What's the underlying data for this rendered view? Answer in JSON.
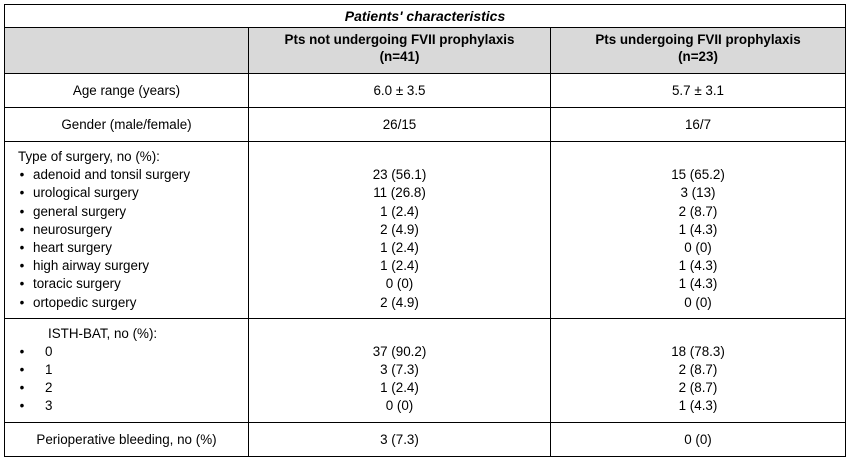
{
  "table": {
    "title": "Patients' characteristics",
    "headers": [
      "",
      "Pts not undergoing FVII prophylaxis\n(n=41)",
      "Pts undergoing FVII prophylaxis\n(n=23)"
    ],
    "header_col2_line1": "Pts not undergoing FVII prophylaxis",
    "header_col2_line2": "(n=41)",
    "header_col3_line1": "Pts undergoing FVII prophylaxis",
    "header_col3_line2": "(n=23)",
    "age": {
      "label": "Age range (years)",
      "no_fvii": "6.0 ± 3.5",
      "fvii": "5.7 ± 3.1"
    },
    "gender": {
      "label": "Gender (male/female)",
      "no_fvii": "26/15",
      "fvii": "16/7"
    },
    "surgery": {
      "label": "Type of surgery, no (%):",
      "bullet": "•",
      "rows": [
        {
          "name": "adenoid and tonsil surgery",
          "no_fvii": "23 (56.1)",
          "fvii": "15 (65.2)"
        },
        {
          "name": "urological surgery",
          "no_fvii": "11 (26.8)",
          "fvii": "3 (13)"
        },
        {
          "name": "general surgery",
          "no_fvii": "1 (2.4)",
          "fvii": "2 (8.7)"
        },
        {
          "name": "neurosurgery",
          "no_fvii": "2 (4.9)",
          "fvii": "1 (4.3)"
        },
        {
          "name": "heart surgery",
          "no_fvii": "1 (2.4)",
          "fvii": "0 (0)"
        },
        {
          "name": "high airway surgery",
          "no_fvii": "1 (2.4)",
          "fvii": "1 (4.3)"
        },
        {
          "name": "toracic surgery",
          "no_fvii": "0 (0)",
          "fvii": "1 (4.3)"
        },
        {
          "name": "ortopedic surgery",
          "no_fvii": "2 (4.9)",
          "fvii": "0 (0)"
        }
      ]
    },
    "isth": {
      "label": "ISTH-BAT, no (%):",
      "rows": [
        {
          "name": "0",
          "no_fvii": "37 (90.2)",
          "fvii": "18 (78.3)"
        },
        {
          "name": "1",
          "no_fvii": "3 (7.3)",
          "fvii": "2 (8.7)"
        },
        {
          "name": "2",
          "no_fvii": "1 (2.4)",
          "fvii": "2 (8.7)"
        },
        {
          "name": "3",
          "no_fvii": "0 (0)",
          "fvii": "1 (4.3)"
        }
      ]
    },
    "bleeding": {
      "label": "Perioperative bleeding, no (%)",
      "no_fvii": "3 (7.3)",
      "fvii": "0 (0)"
    },
    "header_bg": "#d9d9d9"
  }
}
